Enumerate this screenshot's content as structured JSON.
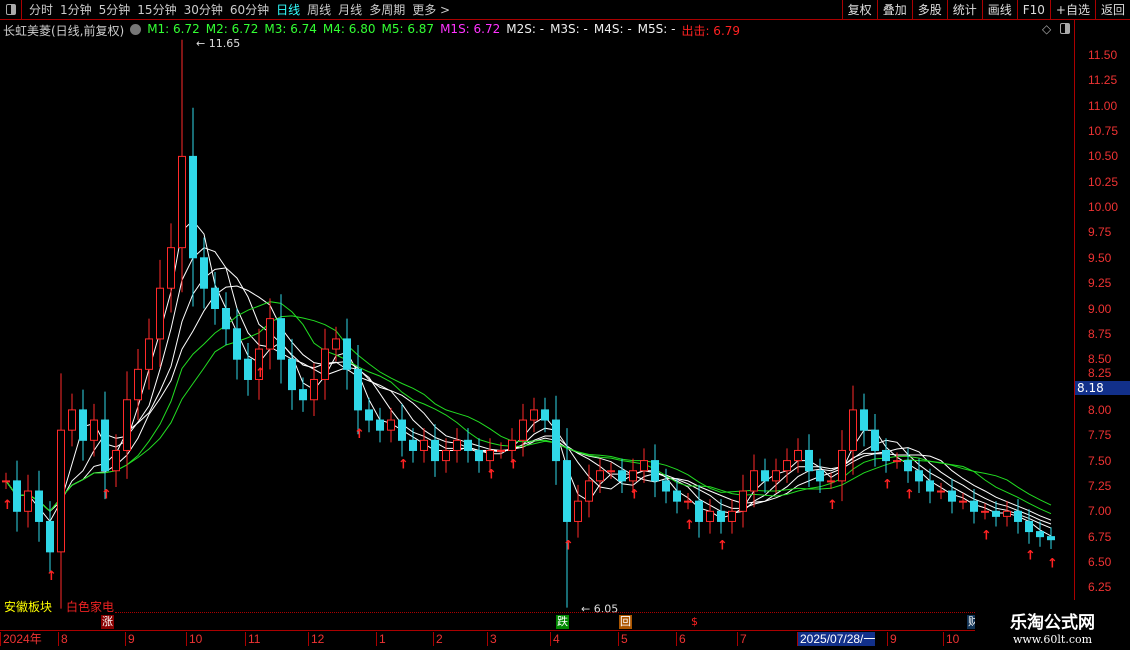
{
  "toolbar": {
    "periods": [
      "分时",
      "1分钟",
      "5分钟",
      "15分钟",
      "30分钟",
      "60分钟",
      "日线",
      "周线",
      "月线",
      "多周期",
      "更多 >"
    ],
    "active": "日线",
    "buttons": [
      "复权",
      "叠加",
      "多股",
      "统计",
      "画线",
      "F10",
      "+自选",
      "返回"
    ]
  },
  "info": {
    "title": "长虹美菱(日线,前复权)",
    "m1": "M1: 6.72",
    "m2": "M2: 6.72",
    "m3": "M3: 6.74",
    "m4": "M4: 6.80",
    "m5": "M5: 6.87",
    "m1s": "M1S: 6.72",
    "m2s": "M2S: -",
    "m3s": "M3S: -",
    "m4s": "M4S: -",
    "m5s": "M5S: -",
    "chuji": "出击: 6.79"
  },
  "yaxis": [
    "11.50",
    "11.25",
    "11.00",
    "10.75",
    "10.50",
    "10.25",
    "10.00",
    "9.75",
    "9.50",
    "9.25",
    "9.00",
    "8.75",
    "8.50",
    "8.25",
    "8.00",
    "7.75",
    "7.50",
    "7.25",
    "7.00",
    "6.75",
    "6.50",
    "6.25"
  ],
  "current_price": "8.18",
  "annotations": {
    "high": "11.65",
    "low": "6.05"
  },
  "sector": {
    "label1": "安徽板块",
    "label2": "白色家电"
  },
  "badges": {
    "zhang": "涨",
    "die": "跌",
    "hui": "回",
    "s": "$",
    "cai": "财"
  },
  "dates": [
    "2024年",
    "8",
    "9",
    "10",
    "11",
    "12",
    "1",
    "2",
    "3",
    "4",
    "5",
    "6",
    "7",
    "2025/07/28/一",
    "9",
    "10"
  ],
  "logo": {
    "name": "乐淘公式网",
    "url": "www.60lt.com"
  },
  "colors": {
    "up": "#ff2a2a",
    "down": "#30d8e8",
    "ma_white": "#ffffff",
    "ma_green": "#22dd22",
    "axis": "#aa0000"
  },
  "chart_data": {
    "type": "candlestick",
    "ylim": [
      6.05,
      11.65
    ],
    "closes": [
      7.3,
      7.0,
      7.2,
      6.9,
      6.6,
      7.8,
      8.0,
      7.7,
      7.9,
      7.4,
      7.6,
      8.1,
      8.4,
      8.7,
      9.2,
      9.6,
      10.5,
      9.5,
      9.2,
      9.0,
      8.8,
      8.5,
      8.3,
      8.6,
      8.9,
      8.5,
      8.2,
      8.1,
      8.3,
      8.6,
      8.7,
      8.4,
      8.0,
      7.9,
      7.8,
      7.9,
      7.7,
      7.6,
      7.7,
      7.5,
      7.6,
      7.7,
      7.6,
      7.5,
      7.6,
      7.6,
      7.7,
      7.9,
      8.0,
      7.9,
      7.5,
      6.9,
      7.1,
      7.3,
      7.4,
      7.4,
      7.3,
      7.4,
      7.5,
      7.3,
      7.2,
      7.1,
      7.1,
      6.9,
      7.0,
      6.9,
      7.0,
      7.2,
      7.4,
      7.3,
      7.4,
      7.5,
      7.6,
      7.4,
      7.3,
      7.3,
      7.6,
      8.0,
      7.8,
      7.6,
      7.5,
      7.5,
      7.4,
      7.3,
      7.2,
      7.2,
      7.1,
      7.1,
      7.0,
      7.0,
      6.95,
      7.0,
      6.9,
      6.8,
      6.75,
      6.72
    ]
  }
}
